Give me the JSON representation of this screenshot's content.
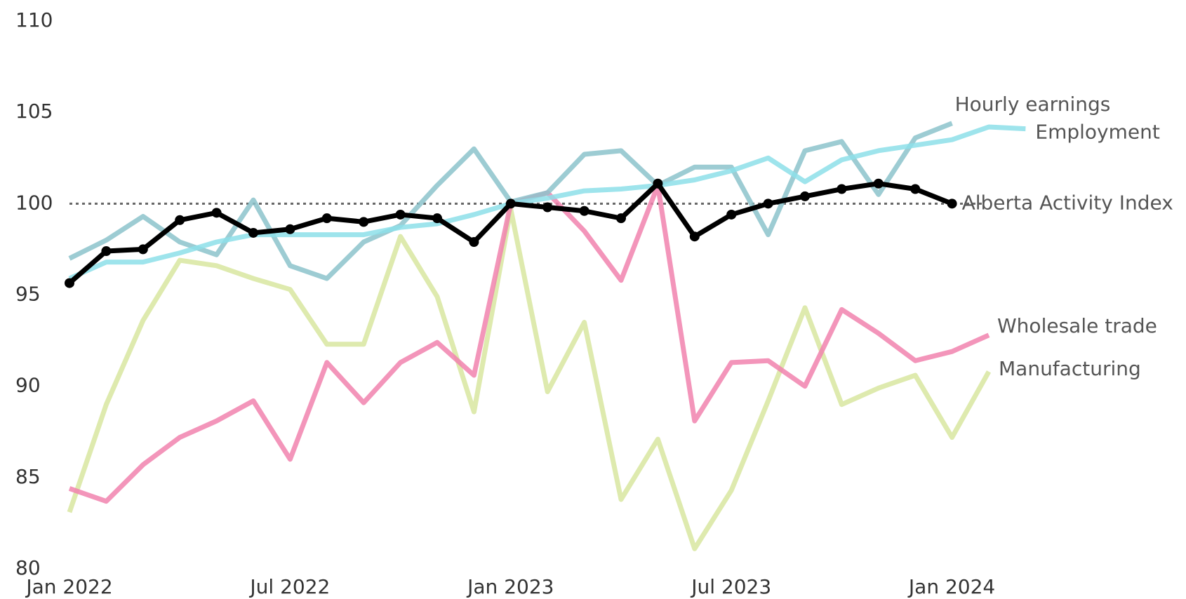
{
  "chart_data": {
    "type": "line",
    "x": [
      "2022-01",
      "2022-02",
      "2022-03",
      "2022-04",
      "2022-05",
      "2022-06",
      "2022-07",
      "2022-08",
      "2022-09",
      "2022-10",
      "2022-11",
      "2022-12",
      "2023-01",
      "2023-02",
      "2023-03",
      "2023-04",
      "2023-05",
      "2023-06",
      "2023-07",
      "2023-08",
      "2023-09",
      "2023-10",
      "2023-11",
      "2023-12",
      "2024-01",
      "2024-02",
      "2024-03"
    ],
    "xticks": [
      {
        "value": "2022-01",
        "label": "Jan 2022"
      },
      {
        "value": "2022-07",
        "label": "Jul 2022"
      },
      {
        "value": "2023-01",
        "label": "Jan 2023"
      },
      {
        "value": "2023-07",
        "label": "Jul 2023"
      },
      {
        "value": "2024-01",
        "label": "Jan 2024"
      }
    ],
    "ylim": [
      80,
      110
    ],
    "yticks": [
      80,
      85,
      90,
      95,
      100,
      105,
      110
    ],
    "reference_line": 100,
    "series": [
      {
        "name": "Manufacturing",
        "color": "#d8e6a0",
        "values": [
          83.1,
          89.0,
          93.6,
          96.9,
          96.6,
          95.9,
          95.3,
          92.3,
          92.3,
          98.2,
          94.9,
          88.6,
          99.7,
          89.7,
          93.5,
          83.8,
          87.1,
          81.1,
          84.3,
          89.2,
          94.3,
          89.0,
          89.9,
          90.6,
          87.2,
          90.8,
          null
        ]
      },
      {
        "name": "Wholesale trade",
        "color": "#f183ae",
        "values": [
          84.4,
          83.7,
          85.7,
          87.2,
          88.1,
          89.2,
          86.0,
          91.3,
          89.1,
          91.3,
          92.4,
          90.6,
          100.0,
          100.6,
          98.5,
          95.8,
          101.0,
          88.1,
          91.3,
          91.4,
          90.0,
          94.2,
          92.9,
          91.4,
          91.9,
          92.8,
          null
        ]
      },
      {
        "name": "Hourly earnings",
        "color": "#8cc3cb",
        "values": [
          97.0,
          98.0,
          99.3,
          97.9,
          97.2,
          100.2,
          96.6,
          95.9,
          97.9,
          98.8,
          101.0,
          103.0,
          100.1,
          100.6,
          102.7,
          102.9,
          101.0,
          102.0,
          102.0,
          98.3,
          102.9,
          103.4,
          100.5,
          103.6,
          104.4,
          null,
          null
        ]
      },
      {
        "name": "Employment",
        "color": "#8ddfe9",
        "values": [
          95.9,
          96.8,
          96.8,
          97.3,
          97.9,
          98.3,
          98.3,
          98.3,
          98.3,
          98.7,
          98.9,
          99.4,
          100.0,
          100.3,
          100.7,
          100.8,
          101.0,
          101.3,
          101.8,
          102.5,
          101.2,
          102.4,
          102.9,
          103.2,
          103.5,
          104.2,
          104.1
        ]
      },
      {
        "name": "Alberta Activity Index",
        "color": "#000000",
        "markers": true,
        "values": [
          95.65,
          97.4,
          97.5,
          99.1,
          99.5,
          98.4,
          98.6,
          99.2,
          99.0,
          99.4,
          99.2,
          97.9,
          100.0,
          99.8,
          99.6,
          99.2,
          101.1,
          98.2,
          99.4,
          100.0,
          100.4,
          100.8,
          101.1,
          100.8,
          100.0,
          null,
          null
        ]
      }
    ]
  }
}
